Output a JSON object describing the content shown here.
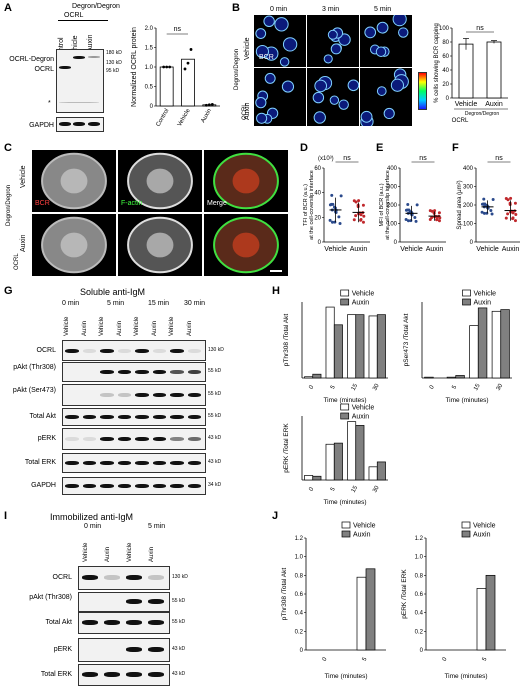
{
  "panel_letters": [
    "A",
    "B",
    "C",
    "D",
    "E",
    "F",
    "G",
    "H",
    "I",
    "J"
  ],
  "panelA": {
    "header_top": "Degron/Degron",
    "header_ocrl": "OCRL",
    "lanes": [
      "Control",
      "Vehicle",
      "Auxin"
    ],
    "left_labels": [
      "OCRL-Degron",
      "OCRL"
    ],
    "kd_labels": [
      "180 kD",
      "130 kD",
      "95 kD"
    ],
    "asterisk": "*",
    "gapdh": "GAPDH",
    "chart_data": {
      "type": "bar",
      "categories": [
        "Control",
        "Vehicle",
        "Auxin"
      ],
      "values": [
        1.0,
        1.2,
        0.03
      ],
      "points": [
        [
          1.0,
          1.0,
          1.0
        ],
        [
          0.95,
          1.1,
          1.45
        ],
        [
          0.02,
          0.03,
          0.04
        ]
      ],
      "ylabel": "Normalized OCRL protein",
      "ylim": [
        0,
        2.0
      ],
      "yticks": [
        "0",
        "0.5",
        "1.0",
        "1.5",
        "2.0"
      ],
      "annotation": "ns"
    }
  },
  "panelB": {
    "times": [
      "0 min",
      "3 min",
      "5 min"
    ],
    "row_labels": [
      "Vehicle",
      "Auxin"
    ],
    "side_top": "Degron/Degron",
    "side_ocrl": "OCRL",
    "overlay": "BCR",
    "chart_data": {
      "type": "bar",
      "categories": [
        "Vehicle",
        "Auxin"
      ],
      "values": [
        77,
        80
      ],
      "errors": [
        8,
        2
      ],
      "ylabel": "% cells showing BCR capping",
      "ylim": [
        0,
        100
      ],
      "yticks": [
        "0",
        "20",
        "40",
        "60",
        "80",
        "100"
      ],
      "annotation": "ns",
      "under_top": "Degron/Degron",
      "under_ocrl": "OCRL"
    }
  },
  "panelC": {
    "side_top": "Degron/Degron",
    "side_ocrl": "OCRL",
    "row_labels": [
      "Vehicle",
      "Auxin"
    ],
    "channels": [
      "BCR",
      "F-actin",
      "Merge"
    ]
  },
  "panelD": {
    "chart_data": {
      "type": "scatter",
      "categories": [
        "Vehicle",
        "Auxin"
      ],
      "means": [
        26,
        24
      ],
      "sd": [
        10,
        8
      ],
      "ylabel": "TFI of BCR (a.u.) at the cell-coverslip interface",
      "scale_note": "(x10³)",
      "ylim": [
        0,
        60
      ],
      "yticks": [
        "0",
        "20",
        "40",
        "60"
      ],
      "annotation": "ns",
      "colors": [
        "#2b4a8c",
        "#c0282c"
      ]
    }
  },
  "panelE": {
    "chart_data": {
      "type": "scatter",
      "categories": [
        "Vehicle",
        "Auxin"
      ],
      "means": [
        155,
        140
      ],
      "sd": [
        40,
        25
      ],
      "ylabel": "MFI of BCR (a.u.) at the cell-coverslip interface",
      "ylim": [
        0,
        400
      ],
      "yticks": [
        "0",
        "100",
        "200",
        "300",
        "400"
      ],
      "annotation": "ns",
      "colors": [
        "#2b4a8c",
        "#c0282c"
      ]
    }
  },
  "panelF": {
    "chart_data": {
      "type": "scatter",
      "categories": [
        "Vehicle",
        "Auxin"
      ],
      "means": [
        190,
        170
      ],
      "sd": [
        35,
        55
      ],
      "ylabel": "Spread area (μm²)",
      "ylim": [
        0,
        400
      ],
      "yticks": [
        "0",
        "100",
        "200",
        "300",
        "400"
      ],
      "annotation": "ns",
      "colors": [
        "#2b4a8c",
        "#c0282c"
      ]
    }
  },
  "panelG": {
    "title": "Soluble anti-IgM",
    "times": [
      "0 min",
      "5 min",
      "15 min",
      "30 min"
    ],
    "lanes": [
      "Vehicle",
      "Auxin",
      "Vehicle",
      "Auxin",
      "Vehicle",
      "Auxin",
      "Vehicle",
      "Auxin"
    ],
    "rows": [
      {
        "label": "OCRL",
        "kd": "130 kD"
      },
      {
        "label": "pAkt (Thr308)",
        "kd": "55 kD"
      },
      {
        "label": "pAkt (Ser473)",
        "kd": "55 kD"
      },
      {
        "label": "Total Akt",
        "kd": "55 kD"
      },
      {
        "label": "pERK",
        "kd": "43 kD"
      },
      {
        "label": "Total ERK",
        "kd": "43 kD"
      },
      {
        "label": "GAPDH",
        "kd": "34 kD"
      }
    ]
  },
  "panelH": {
    "legend": [
      "Vehicle",
      "Auxin"
    ],
    "xlabel": "Time (minutes)",
    "chart_data": [
      {
        "type": "bar",
        "categories": [
          "0",
          "5",
          "15",
          "30"
        ],
        "ylabel": "pThr308 /Total Akt",
        "series": [
          {
            "name": "Vehicle",
            "values": [
              0.1,
              5.6,
              5.0,
              4.9
            ]
          },
          {
            "name": "Auxin",
            "values": [
              0.3,
              4.2,
              5.0,
              5.0
            ]
          }
        ],
        "ymax": 6
      },
      {
        "type": "bar",
        "categories": [
          "0",
          "5",
          "15",
          "30"
        ],
        "ylabel": "pSer473 /Total Akt",
        "series": [
          {
            "name": "Vehicle",
            "values": [
              0.1,
              0.1,
              6.2,
              7.9
            ]
          },
          {
            "name": "Auxin",
            "values": [
              0.0,
              0.3,
              8.3,
              8.1
            ]
          }
        ],
        "ymax": 9
      },
      {
        "type": "bar",
        "categories": [
          "0",
          "5",
          "15",
          "30"
        ],
        "ylabel": "pERK /Total ERK",
        "series": [
          {
            "name": "Vehicle",
            "values": [
              0.12,
              0.95,
              1.55,
              0.35
            ]
          },
          {
            "name": "Auxin",
            "values": [
              0.1,
              0.98,
              1.45,
              0.48
            ]
          }
        ],
        "ymax": 1.7
      }
    ]
  },
  "panelI": {
    "title": "Immobilized anti-IgM",
    "times": [
      "0 min",
      "5 min"
    ],
    "lanes": [
      "Vehicle",
      "Auxin",
      "Vehicle",
      "Auxin"
    ],
    "rows": [
      {
        "label": "OCRL",
        "kd": "130 kD"
      },
      {
        "label": "pAkt (Thr308)",
        "kd": "55 kD"
      },
      {
        "label": "Total Akt",
        "kd": "55 kD"
      },
      {
        "label": "pERK",
        "kd": "43 kD"
      },
      {
        "label": "Total ERK",
        "kd": "43 kD"
      }
    ]
  },
  "panelJ": {
    "legend": [
      "Vehicle",
      "Auxin"
    ],
    "xlabel": "Time (minutes)",
    "chart_data": [
      {
        "type": "bar",
        "categories": [
          "0",
          "5"
        ],
        "ylabel": "pThr308 /Total Akt",
        "ylim": [
          0,
          1.2
        ],
        "yticks": [
          "0",
          "0.2",
          "0.4",
          "0.6",
          "0.8",
          "1.0",
          "1.2"
        ],
        "series": [
          {
            "name": "Vehicle",
            "values": [
              0,
              0.78
            ]
          },
          {
            "name": "Auxin",
            "values": [
              0,
              0.87
            ]
          }
        ]
      },
      {
        "type": "bar",
        "categories": [
          "0",
          "5"
        ],
        "ylabel": "pERK /Total ERK",
        "ylim": [
          0,
          1.2
        ],
        "yticks": [
          "0",
          "0.2",
          "0.4",
          "0.6",
          "0.8",
          "1.0",
          "1.2"
        ],
        "series": [
          {
            "name": "Vehicle",
            "values": [
              0,
              0.66
            ]
          },
          {
            "name": "Auxin",
            "values": [
              0,
              0.8
            ]
          }
        ]
      }
    ]
  }
}
